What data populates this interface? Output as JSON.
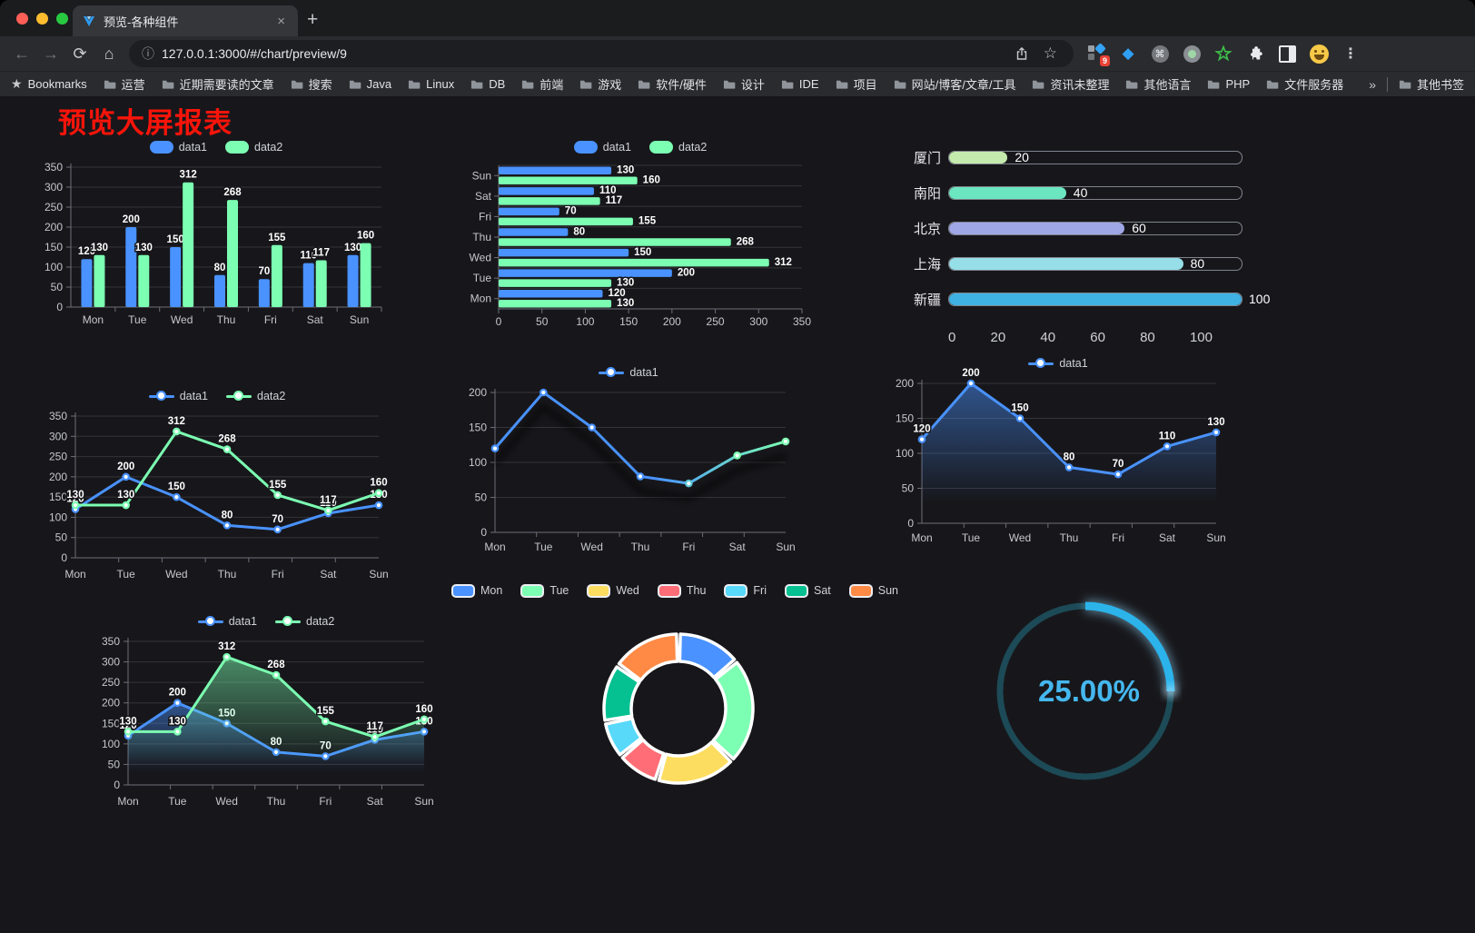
{
  "browser": {
    "traffic_lights": {
      "close": "#ff5f57",
      "minimize": "#febc2e",
      "zoom": "#28c840"
    },
    "tab": {
      "title": "预览-各种组件",
      "close_glyph": "×",
      "new_tab_glyph": "+"
    },
    "nav": {
      "back": "←",
      "forward": "→",
      "reload": "⟳",
      "home": "⌂"
    },
    "url": "127.0.0.1:3000/#/chart/preview/9",
    "extension_badge": "9",
    "bookmarks_label": "Bookmarks",
    "bookmarks": [
      "运营",
      "近期需要读的文章",
      "搜索",
      "Java",
      "Linux",
      "DB",
      "前端",
      "游戏",
      "软件/硬件",
      "设计",
      "IDE",
      "项目",
      "网站/博客/文章/工具",
      "资讯未整理",
      "其他语言",
      "PHP",
      "文件服务器"
    ],
    "bookmarks_overflow": "»",
    "other_bookmarks": "其他书签"
  },
  "page": {
    "title": "预览大屏报表",
    "title_color": "#f7140a",
    "background": "#17171b"
  },
  "palette": {
    "blue": "#4992ff",
    "green": "#7cffb2",
    "grid": "rgba(255,255,255,0.13)",
    "axis": "#6d6d78",
    "tick_text": "#c6c7ce"
  },
  "chart_data": [
    {
      "id": "c1",
      "type": "bar",
      "legend": [
        "data1",
        "data2"
      ],
      "categories": [
        "Mon",
        "Tue",
        "Wed",
        "Thu",
        "Fri",
        "Sat",
        "Sun"
      ],
      "series": [
        {
          "name": "data1",
          "color": "#4992ff",
          "values": [
            120,
            200,
            150,
            80,
            70,
            110,
            130
          ]
        },
        {
          "name": "data2",
          "color": "#7cffb2",
          "values": [
            130,
            130,
            312,
            268,
            155,
            117,
            160
          ]
        }
      ],
      "ylim": [
        0,
        350
      ],
      "yticks": [
        0,
        50,
        100,
        150,
        200,
        250,
        300,
        350
      ]
    },
    {
      "id": "c2",
      "type": "bar",
      "orientation": "horizontal",
      "legend": [
        "data1",
        "data2"
      ],
      "categories_top_to_bottom": [
        "Sun",
        "Sat",
        "Fri",
        "Thu",
        "Wed",
        "Tue",
        "Mon"
      ],
      "series": [
        {
          "name": "data1",
          "color": "#4992ff",
          "values": [
            130,
            110,
            70,
            80,
            150,
            200,
            120
          ]
        },
        {
          "name": "data2",
          "color": "#7cffb2",
          "values": [
            160,
            117,
            155,
            268,
            312,
            130,
            130
          ]
        }
      ],
      "xlim": [
        0,
        350
      ],
      "xticks": [
        0,
        50,
        100,
        150,
        200,
        250,
        300,
        350
      ]
    },
    {
      "id": "c3",
      "type": "bar",
      "orientation": "horizontal-capsule",
      "rows": [
        {
          "label": "厦门",
          "value": 20,
          "color": "#c4ebad"
        },
        {
          "label": "南阳",
          "value": 40,
          "color": "#6be6c1"
        },
        {
          "label": "北京",
          "value": 60,
          "color": "#a0a7e6"
        },
        {
          "label": "上海",
          "value": 80,
          "color": "#96dee8"
        },
        {
          "label": "新疆",
          "value": 100,
          "color": "#3fb1e3"
        }
      ],
      "xticks": [
        0,
        20,
        40,
        60,
        80,
        100
      ],
      "xlim": [
        0,
        100
      ]
    },
    {
      "id": "c4",
      "type": "line",
      "legend": [
        "data1",
        "data2"
      ],
      "categories": [
        "Mon",
        "Tue",
        "Wed",
        "Thu",
        "Fri",
        "Sat",
        "Sun"
      ],
      "series": [
        {
          "name": "data1",
          "color": "#4992ff",
          "values": [
            120,
            200,
            150,
            80,
            70,
            110,
            130
          ]
        },
        {
          "name": "data2",
          "color": "#7cffb2",
          "values": [
            130,
            130,
            312,
            268,
            155,
            117,
            160
          ]
        }
      ],
      "ylim": [
        0,
        350
      ],
      "yticks": [
        0,
        50,
        100,
        150,
        200,
        250,
        300,
        350
      ],
      "value_labels": true
    },
    {
      "id": "c5",
      "type": "line",
      "legend": [
        "data1"
      ],
      "categories": [
        "Mon",
        "Tue",
        "Wed",
        "Thu",
        "Fri",
        "Sat",
        "Sun"
      ],
      "series": [
        {
          "name": "data1",
          "color": "#4992ff",
          "gradient_end": "#7cffb2",
          "values": [
            120,
            200,
            150,
            80,
            70,
            110,
            130
          ]
        }
      ],
      "ylim": [
        0,
        200
      ],
      "yticks": [
        0,
        50,
        100,
        150,
        200
      ],
      "value_labels": false,
      "shadow": true
    },
    {
      "id": "c6",
      "type": "line",
      "legend": [
        "data1"
      ],
      "categories": [
        "Mon",
        "Tue",
        "Wed",
        "Thu",
        "Fri",
        "Sat",
        "Sun"
      ],
      "series": [
        {
          "name": "data1",
          "color": "#4992ff",
          "values": [
            120,
            200,
            150,
            80,
            70,
            110,
            130
          ],
          "area": true
        }
      ],
      "ylim": [
        0,
        200
      ],
      "yticks": [
        0,
        50,
        100,
        150,
        200
      ],
      "value_labels": true
    },
    {
      "id": "c7",
      "type": "line",
      "legend": [
        "data1",
        "data2"
      ],
      "categories": [
        "Mon",
        "Tue",
        "Wed",
        "Thu",
        "Fri",
        "Sat",
        "Sun"
      ],
      "series": [
        {
          "name": "data1",
          "color": "#4992ff",
          "values": [
            120,
            200,
            150,
            80,
            70,
            110,
            130
          ],
          "area": true
        },
        {
          "name": "data2",
          "color": "#7cffb2",
          "values": [
            130,
            130,
            312,
            268,
            155,
            117,
            160
          ],
          "area": true
        }
      ],
      "ylim": [
        0,
        350
      ],
      "yticks": [
        0,
        50,
        100,
        150,
        200,
        250,
        300,
        350
      ],
      "value_labels": true
    },
    {
      "id": "c8",
      "type": "pie",
      "shape": "donut",
      "legend": [
        "Mon",
        "Tue",
        "Wed",
        "Thu",
        "Fri",
        "Sat",
        "Sun"
      ],
      "values": [
        120,
        200,
        150,
        80,
        70,
        110,
        130
      ],
      "colors": [
        "#4992ff",
        "#7cffb2",
        "#fddd60",
        "#ff6e76",
        "#58d9f9",
        "#05c091",
        "#ff8a45"
      ]
    },
    {
      "id": "c9",
      "type": "gauge",
      "percent": 25,
      "label": "25.00%",
      "color": "#2bb3ea",
      "track_color": "#1d4a57",
      "text_color": "#45b7ee"
    }
  ]
}
